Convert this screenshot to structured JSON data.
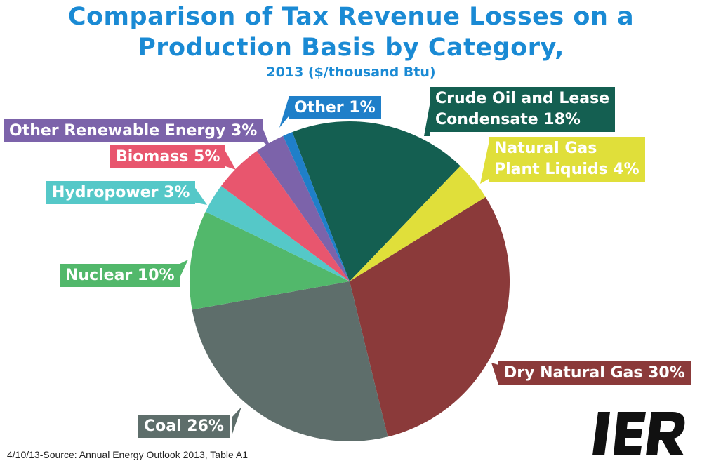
{
  "chart_data": {
    "type": "pie",
    "title_line1": "Comparison of Tax Revenue Losses on a",
    "title_line2": "Production Basis by Category,",
    "subtitle": "2013 ($/thousand Btu)",
    "slices": [
      {
        "label": "Crude Oil and Lease Condensate",
        "line1": "Crude Oil and Lease",
        "line2": "Condensate 18%",
        "value": 18,
        "color": "#145f51"
      },
      {
        "label": "Natural Gas Plant Liquids",
        "line1": "Natural Gas",
        "line2": "Plant Liquids 4%",
        "value": 4,
        "color": "#e0df3a"
      },
      {
        "label": "Dry Natural Gas",
        "text": "Dry Natural Gas 30%",
        "value": 30,
        "color": "#8b3a3a"
      },
      {
        "label": "Coal",
        "text": "Coal 26%",
        "value": 26,
        "color": "#5e6e6b"
      },
      {
        "label": "Nuclear",
        "text": "Nuclear 10%",
        "value": 10,
        "color": "#52b86b"
      },
      {
        "label": "Hydropower",
        "text": "Hydropower 3%",
        "value": 3,
        "color": "#55c8c8"
      },
      {
        "label": "Biomass",
        "text": "Biomass 5%",
        "value": 5,
        "color": "#e8566e"
      },
      {
        "label": "Other Renewable Energy",
        "text": "Other Renewable Energy 3%",
        "value": 3,
        "color": "#7c63aa"
      },
      {
        "label": "Other",
        "text": "Other 1%",
        "value": 1,
        "color": "#1f7fc9"
      }
    ]
  },
  "source": "4/10/13-Source: Annual Energy Outlook 2013, Table A1",
  "logo_text": "IER"
}
